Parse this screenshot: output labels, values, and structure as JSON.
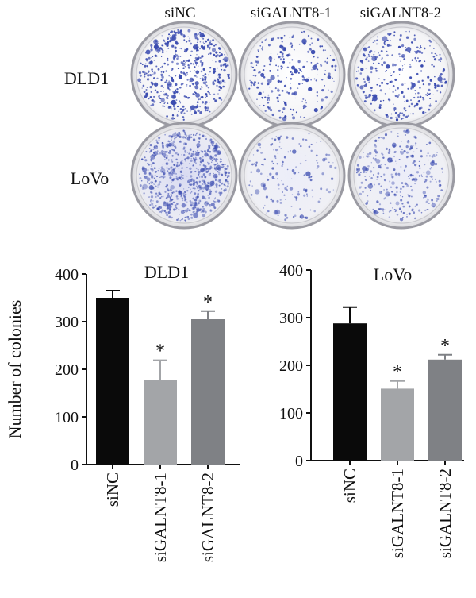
{
  "colony_panel": {
    "columns": [
      "siNC",
      "siGALNT8-1",
      "siGALNT8-2"
    ],
    "rows": [
      "DLD1",
      "LoVo"
    ],
    "stain_color": "#3a4bb0"
  },
  "chart_data": [
    {
      "type": "bar",
      "title": "DLD1",
      "ylabel": "Number of colonies",
      "xlabel": "",
      "ylim": [
        0,
        400
      ],
      "yticks": [
        0,
        100,
        200,
        300,
        400
      ],
      "categories": [
        "siNC",
        "siGALNT8-1",
        "siGALNT8-2"
      ],
      "values": [
        350,
        177,
        305
      ],
      "errors": [
        15,
        42,
        17
      ],
      "significance": [
        "",
        "*",
        "*"
      ],
      "colors": [
        "#0a0a0a",
        "#a3a5a8",
        "#7f8185"
      ],
      "grid": false
    },
    {
      "type": "bar",
      "title": "LoVo",
      "ylabel": "",
      "xlabel": "",
      "ylim": [
        0,
        400
      ],
      "yticks": [
        0,
        100,
        200,
        300,
        400
      ],
      "categories": [
        "siNC",
        "siGALNT8-1",
        "siGALNT8-2"
      ],
      "values": [
        288,
        151,
        212
      ],
      "errors": [
        34,
        16,
        10
      ],
      "significance": [
        "",
        "*",
        "*"
      ],
      "colors": [
        "#0a0a0a",
        "#a3a5a8",
        "#7f8185"
      ],
      "grid": false
    }
  ]
}
